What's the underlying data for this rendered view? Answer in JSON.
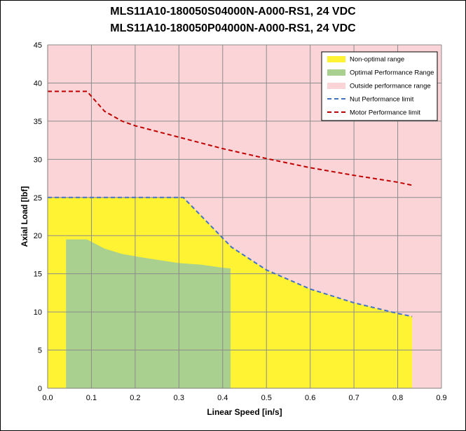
{
  "chart_data": {
    "type": "area",
    "title_lines": [
      "MLS11A10-180050S04000N-A000-RS1, 24 VDC",
      "MLS11A10-180050P04000N-A000-RS1, 24 VDC"
    ],
    "xlabel": "Linear Speed [in/s]",
    "ylabel": "Axial Load [lbf]",
    "xlim": [
      0,
      0.9
    ],
    "ylim": [
      0,
      45
    ],
    "xticks": [
      "0.0",
      "0.1",
      "0.2",
      "0.3",
      "0.4",
      "0.5",
      "0.6",
      "0.7",
      "0.8",
      "0.9"
    ],
    "yticks": [
      "0",
      "5",
      "10",
      "15",
      "20",
      "25",
      "30",
      "35",
      "40",
      "45"
    ],
    "grid": true,
    "legend_position": "top-right",
    "colors": {
      "background": "#fad4d6",
      "non_optimal": "#fff333",
      "optimal": "#a9d08e",
      "nut": "#4472c4",
      "motor": "#c00000",
      "grid": "#8c8c8c"
    },
    "series": [
      {
        "name": "Non-optimal range",
        "kind": "area",
        "x": [
          0.0,
          0.31,
          0.42,
          0.5,
          0.6,
          0.7,
          0.8,
          0.833
        ],
        "y": [
          25.0,
          25.0,
          18.5,
          15.5,
          13.0,
          11.2,
          9.8,
          9.4
        ]
      },
      {
        "name": "Optimal Performance Range",
        "kind": "area",
        "x": [
          0.042,
          0.09,
          0.13,
          0.17,
          0.22,
          0.3,
          0.35,
          0.4,
          0.418
        ],
        "y": [
          19.5,
          19.5,
          18.3,
          17.6,
          17.1,
          16.4,
          16.2,
          15.8,
          15.7
        ]
      },
      {
        "name": "Outside performance range",
        "kind": "fill"
      },
      {
        "name": "Nut Performance limit",
        "kind": "dashed-line",
        "x": [
          0.0,
          0.31,
          0.42,
          0.5,
          0.6,
          0.7,
          0.8,
          0.833
        ],
        "y": [
          25.0,
          25.0,
          18.5,
          15.5,
          13.0,
          11.2,
          9.8,
          9.4
        ]
      },
      {
        "name": "Motor Performance limit",
        "kind": "dashed-line",
        "x": [
          0.0,
          0.09,
          0.13,
          0.17,
          0.2,
          0.3,
          0.4,
          0.5,
          0.6,
          0.7,
          0.8,
          0.833
        ],
        "y": [
          38.9,
          38.9,
          36.3,
          35.0,
          34.4,
          32.9,
          31.4,
          30.1,
          28.9,
          27.9,
          27.0,
          26.6
        ]
      }
    ]
  }
}
